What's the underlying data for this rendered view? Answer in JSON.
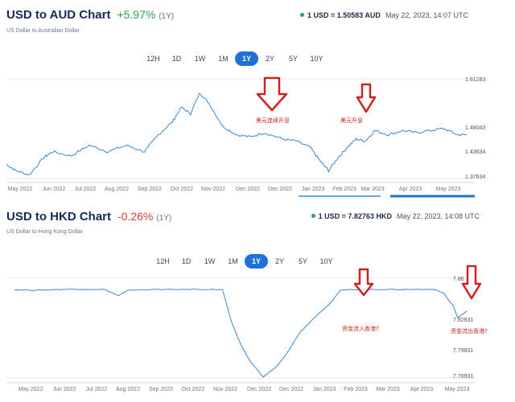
{
  "panels": [
    {
      "title": "USD to AUD Chart",
      "change": "+5.97%",
      "period": "(1Y)",
      "subtitle": "US Dollar to Australian Dollar",
      "rate": "1 USD = 1.50583 AUD",
      "timestamp": "May 22, 2023, 14:07 UTC",
      "tabs": [
        "12H",
        "1D",
        "1W",
        "1M",
        "1Y",
        "2Y",
        "5Y",
        "10Y"
      ],
      "active_tab": "1Y",
      "annotations": [
        "美元连续升息",
        "美元升息"
      ]
    },
    {
      "title": "USD to HKD Chart",
      "change": "-0.26%",
      "period": "(1Y)",
      "subtitle": "US Dollar to Hong Kong Dollar",
      "rate": "1 USD = 7.82763 HKD",
      "timestamp": "May 22, 2023, 14:08 UTC",
      "tabs": [
        "12H",
        "1D",
        "1W",
        "1M",
        "1Y",
        "2Y",
        "5Y",
        "10Y"
      ],
      "active_tab": "1Y",
      "annotations": [
        "资金流入香港?",
        "资金流出香港?"
      ]
    }
  ],
  "colors": {
    "line": "#3a86d4",
    "accent": "#1f70d7",
    "positive": "#2e9f4f",
    "negative": "#d33d3d",
    "annotation": "#cc2222"
  },
  "chart_data": [
    {
      "type": "line",
      "title": "USD to AUD Chart",
      "x_ticks": [
        "May 2022",
        "Jun 2022",
        "Jul 2022",
        "Aug 2022",
        "Sep 2022",
        "Oct 2022",
        "Nov 2022",
        "Dec 2022",
        "Dec 2022",
        "Jan 2023",
        "Feb 2023",
        "Mar 2023",
        "Apr 2023",
        "May 2023"
      ],
      "y_ticks": [
        "1.61283",
        "1.48043",
        "1.43634",
        "1.37634"
      ],
      "ylim": [
        1.37634,
        1.61283
      ],
      "x": [
        0,
        0.02,
        0.05,
        0.08,
        0.1,
        0.14,
        0.18,
        0.22,
        0.26,
        0.3,
        0.33,
        0.36,
        0.38,
        0.4,
        0.42,
        0.44,
        0.47,
        0.5,
        0.53,
        0.56,
        0.6,
        0.63,
        0.66,
        0.68,
        0.7,
        0.72,
        0.74,
        0.76,
        0.78,
        0.8,
        0.83,
        0.86,
        0.89,
        0.92,
        0.95,
        0.98,
        1.0
      ],
      "series": [
        {
          "values": [
            1.41,
            1.395,
            1.385,
            1.425,
            1.44,
            1.43,
            1.455,
            1.44,
            1.455,
            1.44,
            1.48,
            1.51,
            1.545,
            1.53,
            1.58,
            1.555,
            1.5,
            1.48,
            1.475,
            1.485,
            1.47,
            1.465,
            1.45,
            1.42,
            1.395,
            1.425,
            1.45,
            1.47,
            1.465,
            1.49,
            1.48,
            1.49,
            1.485,
            1.49,
            1.495,
            1.48,
            1.48
          ]
        }
      ]
    },
    {
      "type": "line",
      "title": "USD to HKD Chart",
      "x_ticks": [
        "May 2022",
        "Jun 2022",
        "Jul 2022",
        "Aug 2022",
        "Sep 2022",
        "Oct 2022",
        "Nov 2022",
        "Dec 2022",
        "Dec 2022",
        "Jan 2023",
        "Feb 2023",
        "Mar 2023",
        "Apr 2023",
        "May 2023"
      ],
      "y_ticks": [
        "7.86",
        "7.82831",
        "7.79931",
        "7.76931"
      ],
      "ylim": [
        7.76931,
        7.86
      ],
      "x": [
        0,
        0.04,
        0.08,
        0.13,
        0.2,
        0.23,
        0.25,
        0.3,
        0.35,
        0.4,
        0.46,
        0.48,
        0.5,
        0.52,
        0.55,
        0.58,
        0.6,
        0.63,
        0.66,
        0.7,
        0.72,
        0.75,
        0.8,
        0.85,
        0.9,
        0.93,
        0.95,
        0.96,
        0.97,
        0.98,
        1.0
      ],
      "series": [
        {
          "values": [
            7.8495,
            7.849,
            7.8495,
            7.85,
            7.8497,
            7.844,
            7.849,
            7.8497,
            7.8497,
            7.8498,
            7.8497,
            7.82,
            7.8,
            7.785,
            7.77,
            7.78,
            7.79,
            7.81,
            7.823,
            7.838,
            7.849,
            7.8497,
            7.8497,
            7.8497,
            7.8498,
            7.8497,
            7.846,
            7.84,
            7.835,
            7.824,
            7.83
          ]
        }
      ]
    }
  ]
}
